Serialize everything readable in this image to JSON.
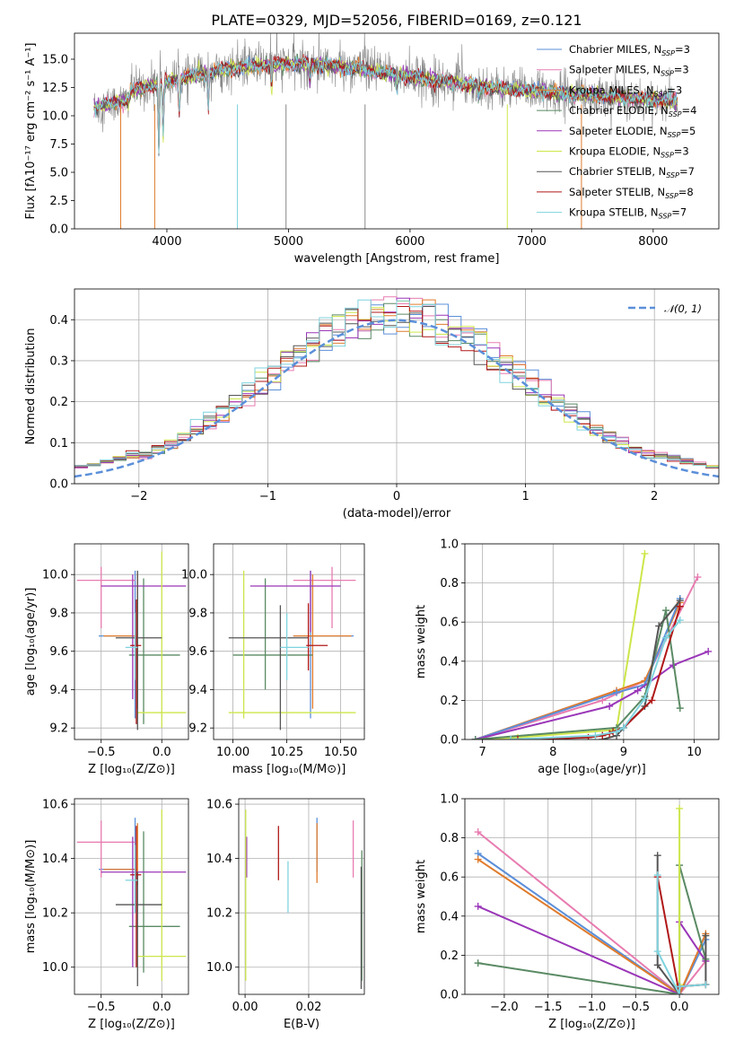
{
  "colors": {
    "Chabrier MILES": "#5b8fd9",
    "Salpeter MILES": "#e87cb0",
    "Kroupa MILES": "#e07b2c",
    "Chabrier ELODIE": "#5a8a64",
    "Salpeter ELODIE": "#9a36b8",
    "Kroupa ELODIE": "#cde64a",
    "Chabrier STELIB": "#555555",
    "Salpeter STELIB": "#b01818",
    "Kroupa STELIB": "#7fd3de"
  },
  "chart_data": [
    {
      "id": "spectrum",
      "type": "line",
      "title": "PLATE=0329, MJD=52056, FIBERID=0169, z=0.121",
      "xlabel": "wavelength [Angstrom, rest frame]",
      "ylabel": "Flux [fλ10⁻¹⁷ erg cm⁻² s⁻¹ A⁻¹]",
      "xlim": [
        3240,
        8540
      ],
      "ylim": [
        0,
        17.3
      ],
      "xticks": [
        "4000",
        "5000",
        "6000",
        "7000",
        "8000"
      ],
      "yticks": [
        "0.0",
        "2.5",
        "5.0",
        "7.5",
        "10.0",
        "12.5",
        "15.0"
      ],
      "legend_position": "upper-right",
      "series": [
        {
          "name": "Chabrier MILES, N",
          "sub": "SSP",
          "suffix": "=3"
        },
        {
          "name": "Salpeter MILES, N",
          "sub": "SSP",
          "suffix": "=3"
        },
        {
          "name": "Kroupa MILES, N",
          "sub": "SSP",
          "suffix": "=3"
        },
        {
          "name": "Chabrier ELODIE, N",
          "sub": "SSP",
          "suffix": "=4"
        },
        {
          "name": "Salpeter ELODIE, N",
          "sub": "SSP",
          "suffix": "=5"
        },
        {
          "name": "Kroupa ELODIE, N",
          "sub": "SSP",
          "suffix": "=3"
        },
        {
          "name": "Chabrier STELIB, N",
          "sub": "SSP",
          "suffix": "=7"
        },
        {
          "name": "Salpeter STELIB, N",
          "sub": "SSP",
          "suffix": "=8"
        },
        {
          "name": "Kroupa STELIB, N",
          "sub": "SSP",
          "suffix": "=7"
        }
      ],
      "data_range": [
        3400,
        8200
      ]
    },
    {
      "id": "residuals",
      "type": "step",
      "xlabel": "(data-model)/error",
      "ylabel": "Normed distribution",
      "xlim": [
        -2.5,
        2.5
      ],
      "ylim": [
        0,
        0.475
      ],
      "xticks": [
        "−2",
        "−1",
        "0",
        "1",
        "2"
      ],
      "yticks": [
        "0.0",
        "0.1",
        "0.2",
        "0.3",
        "0.4"
      ],
      "bin_width": 0.1,
      "gaussian_label": "𝒩(0, 1)",
      "grid": true
    },
    {
      "id": "age_vs_Z",
      "type": "errorbar",
      "xlabel": "Z [log₁₀(Z/Z⊙)]",
      "ylabel": "age  [log₁₀(age/yr)]",
      "xlim": [
        -0.72,
        0.22
      ],
      "ylim": [
        9.14,
        10.16
      ],
      "xticks": [
        "−0.5",
        "0.0"
      ],
      "yticks": [
        "9.2",
        "9.4",
        "9.6",
        "9.8",
        "10.0"
      ],
      "grid": true,
      "points": [
        {
          "s": "Chabrier MILES",
          "x": -0.22,
          "xl": -0.52,
          "xh": -0.21,
          "y": 9.68,
          "yl": 9.25,
          "yh": 10.02
        },
        {
          "s": "Salpeter MILES",
          "x": -0.5,
          "xl": -0.7,
          "xh": -0.22,
          "y": 9.97,
          "yl": 9.72,
          "yh": 10.04
        },
        {
          "s": "Kroupa MILES",
          "x": -0.2,
          "xl": -0.48,
          "xh": -0.2,
          "y": 9.68,
          "yl": 9.3,
          "yh": 10.0
        },
        {
          "s": "Chabrier ELODIE",
          "x": -0.15,
          "xl": -0.27,
          "xh": 0.15,
          "y": 9.58,
          "yl": 9.22,
          "yh": 9.98
        },
        {
          "s": "Salpeter ELODIE",
          "x": -0.24,
          "xl": -0.5,
          "xh": 0.2,
          "y": 9.94,
          "yl": 9.35,
          "yh": 10.0
        },
        {
          "s": "Kroupa ELODIE",
          "x": 0.0,
          "xl": -0.2,
          "xh": 0.2,
          "y": 9.28,
          "yl": 9.2,
          "yh": 10.12
        },
        {
          "s": "Chabrier STELIB",
          "x": -0.2,
          "xl": -0.38,
          "xh": 0.0,
          "y": 9.67,
          "yl": 9.19,
          "yh": 10.02
        },
        {
          "s": "Salpeter STELIB",
          "x": -0.21,
          "xl": -0.26,
          "xh": -0.17,
          "y": 9.63,
          "yl": 9.22,
          "yh": 9.87
        },
        {
          "s": "Kroupa STELIB",
          "x": -0.22,
          "xl": -0.3,
          "xh": -0.2,
          "y": 9.62,
          "yl": 9.45,
          "yh": 9.8
        }
      ]
    },
    {
      "id": "age_vs_mass",
      "type": "errorbar",
      "xlabel": "mass [log₁₀(M/M⊙)]",
      "ylabel": "",
      "xlim": [
        9.91,
        10.61
      ],
      "ylim": [
        9.14,
        10.16
      ],
      "xticks": [
        "10.00",
        "10.25",
        "10.50"
      ],
      "yticks": [
        "9.2",
        "9.4",
        "9.6",
        "9.8",
        "10.0"
      ],
      "grid": true,
      "points": [
        {
          "s": "Chabrier MILES",
          "x": 10.36,
          "xl": 10.28,
          "xh": 10.56,
          "y": 9.68,
          "yl": 9.25,
          "yh": 10.02
        },
        {
          "s": "Salpeter MILES",
          "x": 10.46,
          "xl": 10.28,
          "xh": 10.57,
          "y": 9.97,
          "yl": 9.72,
          "yh": 10.04
        },
        {
          "s": "Kroupa MILES",
          "x": 10.37,
          "xl": 10.28,
          "xh": 10.55,
          "y": 9.68,
          "yl": 9.3,
          "yh": 10.0
        },
        {
          "s": "Chabrier ELODIE",
          "x": 10.15,
          "xl": 10.0,
          "xh": 10.37,
          "y": 9.58,
          "yl": 9.4,
          "yh": 9.98
        },
        {
          "s": "Salpeter ELODIE",
          "x": 10.36,
          "xl": 10.08,
          "xh": 10.5,
          "y": 9.94,
          "yl": 9.7,
          "yh": 10.02
        },
        {
          "s": "Kroupa ELODIE",
          "x": 10.05,
          "xl": 9.98,
          "xh": 10.57,
          "y": 9.28,
          "yl": 9.25,
          "yh": 10.02
        },
        {
          "s": "Chabrier STELIB",
          "x": 10.22,
          "xl": 9.98,
          "xh": 10.35,
          "y": 9.67,
          "yl": 9.19,
          "yh": 9.84
        },
        {
          "s": "Salpeter STELIB",
          "x": 10.35,
          "xl": 10.34,
          "xh": 10.44,
          "y": 9.63,
          "yl": 9.5,
          "yh": 9.85
        },
        {
          "s": "Kroupa STELIB",
          "x": 10.25,
          "xl": 10.22,
          "xh": 10.35,
          "y": 9.62,
          "yl": 9.45,
          "yh": 9.8
        }
      ]
    },
    {
      "id": "weight_vs_age",
      "type": "line",
      "xlabel": "age  [log₁₀(age/yr)]",
      "ylabel": "mass weight",
      "xlim": [
        6.75,
        10.35
      ],
      "ylim": [
        0,
        1
      ],
      "xticks": [
        "7",
        "8",
        "9",
        "10"
      ],
      "yticks": [
        "0.0",
        "0.2",
        "0.4",
        "0.6",
        "0.8",
        "1.0"
      ],
      "grid": true,
      "lines": [
        {
          "s": "Kroupa ELODIE",
          "x": [
            6.9,
            7.5,
            8.9,
            9.3
          ],
          "y": [
            0.0,
            0.01,
            0.05,
            0.95
          ]
        },
        {
          "s": "Salpeter MILES",
          "x": [
            6.9,
            8.7,
            9.3,
            10.05
          ],
          "y": [
            0.0,
            0.2,
            0.3,
            0.83
          ]
        },
        {
          "s": "Kroupa MILES",
          "x": [
            6.9,
            8.9,
            9.3,
            9.8
          ],
          "y": [
            0.0,
            0.25,
            0.3,
            0.7
          ]
        },
        {
          "s": "Chabrier MILES",
          "x": [
            6.9,
            8.9,
            9.3,
            9.8
          ],
          "y": [
            0.0,
            0.24,
            0.28,
            0.72
          ]
        },
        {
          "s": "Salpeter ELODIE",
          "x": [
            6.9,
            8.8,
            9.2,
            9.7,
            10.2
          ],
          "y": [
            0.0,
            0.17,
            0.25,
            0.38,
            0.45
          ]
        },
        {
          "s": "Chabrier ELODIE",
          "x": [
            6.9,
            8.9,
            9.3,
            9.6,
            9.8
          ],
          "y": [
            0.0,
            0.06,
            0.22,
            0.66,
            0.16
          ]
        },
        {
          "s": "Chabrier STELIB",
          "x": [
            8.7,
            8.9,
            9.0,
            9.3,
            9.5,
            9.8
          ],
          "y": [
            0.0,
            0.02,
            0.06,
            0.17,
            0.58,
            0.71
          ]
        },
        {
          "s": "Salpeter STELIB",
          "x": [
            7.5,
            8.5,
            8.7,
            8.8,
            8.85,
            9.0,
            9.4,
            9.8
          ],
          "y": [
            0.0,
            0.01,
            0.02,
            0.03,
            0.04,
            0.06,
            0.2,
            0.68
          ]
        },
        {
          "s": "Kroupa STELIB",
          "x": [
            7.4,
            8.6,
            8.9,
            9.0,
            9.3,
            9.6,
            9.8
          ],
          "y": [
            0.0,
            0.02,
            0.04,
            0.06,
            0.21,
            0.52,
            0.61
          ]
        }
      ]
    },
    {
      "id": "mass_vs_Z",
      "type": "errorbar",
      "xlabel": "Z [log₁₀(Z/Z⊙)]",
      "ylabel": "mass [log₁₀(M/M⊙)]",
      "xlim": [
        -0.72,
        0.22
      ],
      "ylim": [
        9.9,
        10.62
      ],
      "xticks": [
        "−0.5",
        "0.0"
      ],
      "yticks": [
        "10.0",
        "10.2",
        "10.4",
        "10.6"
      ],
      "grid": true,
      "points": [
        {
          "s": "Chabrier MILES",
          "x": -0.22,
          "xl": -0.52,
          "xh": -0.21,
          "y": 10.36,
          "yl": 10.2,
          "yh": 10.55
        },
        {
          "s": "Salpeter MILES",
          "x": -0.5,
          "xl": -0.7,
          "xh": -0.22,
          "y": 10.46,
          "yl": 10.33,
          "yh": 10.54
        },
        {
          "s": "Kroupa MILES",
          "x": -0.2,
          "xl": -0.48,
          "xh": -0.2,
          "y": 10.36,
          "yl": 10.3,
          "yh": 10.53
        },
        {
          "s": "Chabrier ELODIE",
          "x": -0.15,
          "xl": -0.27,
          "xh": 0.15,
          "y": 10.15,
          "yl": 9.98,
          "yh": 10.5
        },
        {
          "s": "Salpeter ELODIE",
          "x": -0.24,
          "xl": -0.5,
          "xh": 0.2,
          "y": 10.35,
          "yl": 10.0,
          "yh": 10.48
        },
        {
          "s": "Kroupa ELODIE",
          "x": 0.0,
          "xl": -0.2,
          "xh": 0.2,
          "y": 10.04,
          "yl": 9.95,
          "yh": 10.58
        },
        {
          "s": "Chabrier STELIB",
          "x": -0.2,
          "xl": -0.38,
          "xh": 0.0,
          "y": 10.23,
          "yl": 9.93,
          "yh": 10.35
        },
        {
          "s": "Salpeter STELIB",
          "x": -0.21,
          "xl": -0.26,
          "xh": -0.17,
          "y": 10.34,
          "yl": 10.0,
          "yh": 10.52
        },
        {
          "s": "Kroupa STELIB",
          "x": -0.22,
          "xl": -0.3,
          "xh": -0.2,
          "y": 10.32,
          "yl": 10.2,
          "yh": 10.45
        }
      ]
    },
    {
      "id": "mass_vs_ebv",
      "type": "errorbar",
      "xlabel": "E(B-V)",
      "ylabel": "",
      "xlim": [
        -0.002,
        0.0375
      ],
      "ylim": [
        9.9,
        10.62
      ],
      "xticks": [
        "0.00",
        "0.02"
      ],
      "yticks": [
        "10.0",
        "10.2",
        "10.4",
        "10.6"
      ],
      "grid": true,
      "points": [
        {
          "s": "Chabrier MILES",
          "x": 0.0226,
          "yl": 10.35,
          "yh": 10.55
        },
        {
          "s": "Salpeter MILES",
          "x": 0.034,
          "yl": 10.33,
          "yh": 10.54
        },
        {
          "s": "Kroupa MILES",
          "x": 0.0226,
          "yl": 10.31,
          "yh": 10.53
        },
        {
          "s": "Chabrier ELODIE",
          "x": 0.0367,
          "yl": 9.95,
          "yh": 10.43
        },
        {
          "s": "Salpeter ELODIE",
          "x": 0.0005,
          "yl": 10.33,
          "yh": 10.48
        },
        {
          "s": "Kroupa ELODIE",
          "x": 0.0002,
          "yl": 9.95,
          "yh": 10.58
        },
        {
          "s": "Chabrier STELIB",
          "x": 0.0365,
          "yl": 9.92,
          "yh": 10.37
        },
        {
          "s": "Salpeter STELIB",
          "x": 0.0105,
          "yl": 10.32,
          "yh": 10.52
        },
        {
          "s": "Kroupa STELIB",
          "x": 0.0135,
          "yl": 10.2,
          "yh": 10.39
        }
      ]
    },
    {
      "id": "weight_vs_Z",
      "type": "line",
      "xlabel": "Z [log₁₀(Z/Z⊙)]",
      "ylabel": "mass weight",
      "xlim": [
        -2.45,
        0.45
      ],
      "ylim": [
        0,
        1
      ],
      "xticks": [
        "−2.0",
        "−1.5",
        "−1.0",
        "−0.5",
        "0.0"
      ],
      "yticks": [
        "0.0",
        "0.2",
        "0.4",
        "0.6",
        "0.8",
        "1.0"
      ],
      "grid": true,
      "lines": [
        {
          "s": "Salpeter MILES",
          "x": [
            -2.3,
            0.0,
            0.3
          ],
          "y": [
            0.83,
            0.0,
            0.17
          ]
        },
        {
          "s": "Chabrier MILES",
          "x": [
            -2.3,
            0.0,
            0.3
          ],
          "y": [
            0.72,
            0.0,
            0.28
          ]
        },
        {
          "s": "Kroupa MILES",
          "x": [
            -2.3,
            0.0,
            0.3
          ],
          "y": [
            0.69,
            0.0,
            0.31
          ]
        },
        {
          "s": "Salpeter ELODIE",
          "x": [
            -2.3,
            0.0,
            0.0,
            0.3
          ],
          "y": [
            0.45,
            0.0,
            0.37,
            0.17
          ]
        },
        {
          "s": "Chabrier ELODIE",
          "x": [
            -2.3,
            0.0,
            0.0,
            0.3
          ],
          "y": [
            0.16,
            0.0,
            0.66,
            0.18
          ]
        },
        {
          "s": "Kroupa ELODIE",
          "x": [
            0.0,
            0.0,
            0.0
          ],
          "y": [
            0.95,
            0.05,
            0.0
          ]
        },
        {
          "s": "Chabrier STELIB",
          "x": [
            -0.25,
            -0.25,
            0.0,
            0.0,
            0.3,
            0.3
          ],
          "y": [
            0.71,
            0.15,
            0.0,
            0.04,
            0.05,
            0.3
          ]
        },
        {
          "s": "Salpeter STELIB",
          "x": [
            -0.25,
            0.0,
            0.0,
            0.3
          ],
          "y": [
            0.6,
            0.0,
            0.04,
            0.05
          ]
        },
        {
          "s": "Kroupa STELIB",
          "x": [
            -0.25,
            -0.25,
            0.0,
            0.0,
            0.3
          ],
          "y": [
            0.61,
            0.22,
            0.0,
            0.04,
            0.05
          ]
        }
      ]
    }
  ]
}
